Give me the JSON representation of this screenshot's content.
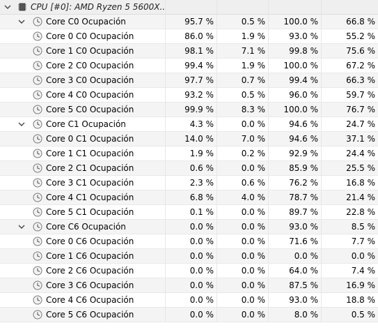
{
  "header": {
    "label": "CPU [#0]: AMD Ryzen 5 5600X...",
    "icon": "cpu-chip-icon"
  },
  "groups": [
    {
      "label": "Core C0 Ocupación",
      "values": [
        "95.7 %",
        "0.5 %",
        "100.0 %",
        "66.8 %"
      ],
      "rows": [
        {
          "label": "Core 0 C0 Ocupación",
          "values": [
            "86.0 %",
            "1.9 %",
            "93.0 %",
            "55.2 %"
          ]
        },
        {
          "label": "Core 1 C0 Ocupación",
          "values": [
            "98.1 %",
            "7.1 %",
            "99.8 %",
            "75.6 %"
          ]
        },
        {
          "label": "Core 2 C0 Ocupación",
          "values": [
            "99.4 %",
            "1.9 %",
            "100.0 %",
            "67.2 %"
          ]
        },
        {
          "label": "Core 3 C0 Ocupación",
          "values": [
            "97.7 %",
            "0.7 %",
            "99.4 %",
            "66.3 %"
          ]
        },
        {
          "label": "Core 4 C0 Ocupación",
          "values": [
            "93.2 %",
            "0.5 %",
            "96.0 %",
            "59.7 %"
          ]
        },
        {
          "label": "Core 5 C0 Ocupación",
          "values": [
            "99.9 %",
            "8.3 %",
            "100.0 %",
            "76.7 %"
          ]
        }
      ]
    },
    {
      "label": "Core C1 Ocupación",
      "values": [
        "4.3 %",
        "0.0 %",
        "94.6 %",
        "24.7 %"
      ],
      "rows": [
        {
          "label": "Core 0 C1 Ocupación",
          "values": [
            "14.0 %",
            "7.0 %",
            "94.6 %",
            "37.1 %"
          ]
        },
        {
          "label": "Core 1 C1 Ocupación",
          "values": [
            "1.9 %",
            "0.2 %",
            "92.9 %",
            "24.4 %"
          ]
        },
        {
          "label": "Core 2 C1 Ocupación",
          "values": [
            "0.6 %",
            "0.0 %",
            "85.9 %",
            "25.5 %"
          ]
        },
        {
          "label": "Core 3 C1 Ocupación",
          "values": [
            "2.3 %",
            "0.6 %",
            "76.2 %",
            "16.8 %"
          ]
        },
        {
          "label": "Core 4 C1 Ocupación",
          "values": [
            "6.8 %",
            "4.0 %",
            "78.7 %",
            "21.4 %"
          ]
        },
        {
          "label": "Core 5 C1 Ocupación",
          "values": [
            "0.1 %",
            "0.0 %",
            "89.7 %",
            "22.8 %"
          ]
        }
      ]
    },
    {
      "label": "Core C6 Ocupación",
      "values": [
        "0.0 %",
        "0.0 %",
        "93.0 %",
        "8.5 %"
      ],
      "rows": [
        {
          "label": "Core 0 C6 Ocupación",
          "values": [
            "0.0 %",
            "0.0 %",
            "71.6 %",
            "7.7 %"
          ]
        },
        {
          "label": "Core 1 C6 Ocupación",
          "values": [
            "0.0 %",
            "0.0 %",
            "0.0 %",
            "0.0 %"
          ]
        },
        {
          "label": "Core 2 C6 Ocupación",
          "values": [
            "0.0 %",
            "0.0 %",
            "64.0 %",
            "7.4 %"
          ]
        },
        {
          "label": "Core 3 C6 Ocupación",
          "values": [
            "0.0 %",
            "0.0 %",
            "87.5 %",
            "16.9 %"
          ]
        },
        {
          "label": "Core 4 C6 Ocupación",
          "values": [
            "0.0 %",
            "0.0 %",
            "93.0 %",
            "18.8 %"
          ]
        },
        {
          "label": "Core 5 C6 Ocupación",
          "values": [
            "0.0 %",
            "0.0 %",
            "8.0 %",
            "0.5 %"
          ]
        }
      ]
    }
  ],
  "icons": {
    "expand": "chevron-down-icon",
    "sensor": "clock-sensor-icon"
  },
  "colors": {
    "row_alt": "#f4f4f4",
    "header_bg": "#efefef",
    "gridline": "#e6e6e6"
  }
}
